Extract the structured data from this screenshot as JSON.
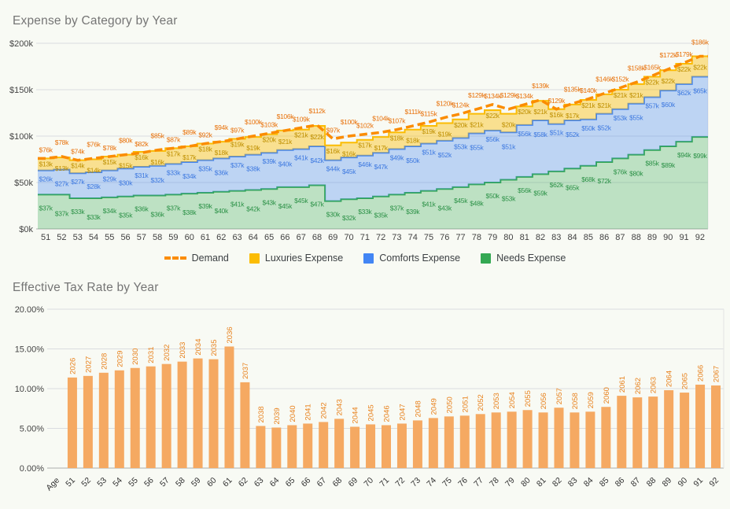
{
  "page_background": "#f8faf4",
  "expense_chart": {
    "title": "Expense by Category by Year",
    "legend": [
      {
        "label": "Demand",
        "marker": "dashed-line",
        "color": "#fb8c00"
      },
      {
        "label": "Luxuries Expense",
        "marker": "square",
        "color": "#fbbc04"
      },
      {
        "label": "Comforts Expense",
        "marker": "square",
        "color": "#4285f4"
      },
      {
        "label": "Needs Expense",
        "marker": "square",
        "color": "#34a853"
      }
    ]
  },
  "tax_chart": {
    "title": "Effective Tax Rate by Year"
  },
  "chart_data": [
    {
      "type": "area",
      "title": "Expense by Category by Year",
      "stacked": true,
      "stepped": true,
      "grid": true,
      "legend_position": "bottom",
      "x": [
        51,
        52,
        53,
        54,
        55,
        56,
        57,
        58,
        59,
        60,
        61,
        62,
        63,
        64,
        65,
        66,
        67,
        68,
        69,
        70,
        71,
        72,
        73,
        74,
        75,
        76,
        77,
        78,
        79,
        80,
        81,
        82,
        83,
        84,
        85,
        86,
        87,
        88,
        89,
        90,
        91,
        92
      ],
      "ylim": [
        0,
        200
      ],
      "value_prefix": "$",
      "value_suffix": "k",
      "y_ticks": [
        {
          "value": 0,
          "label": "$0k"
        },
        {
          "value": 50,
          "label": "$50k"
        },
        {
          "value": 100,
          "label": "$100k"
        },
        {
          "value": 150,
          "label": "$150k"
        },
        {
          "value": 200,
          "label": "$200k"
        }
      ],
      "series": [
        {
          "name": "Needs Expense",
          "color": "#34a853",
          "label_color": "#2d9248",
          "fill_opacity": 0.3,
          "values": [
            37,
            37,
            33,
            33,
            34,
            35,
            36,
            36,
            37,
            38,
            39,
            40,
            41,
            42,
            43,
            45,
            45,
            47,
            30,
            32,
            33,
            35,
            37,
            39,
            41,
            43,
            45,
            48,
            50,
            53,
            56,
            59,
            62,
            65,
            68,
            72,
            76,
            80,
            85,
            89,
            94,
            99
          ]
        },
        {
          "name": "Comforts Expense",
          "color": "#4285f4",
          "label_color": "#3f7ae0",
          "fill_opacity": 0.32,
          "values": [
            26,
            27,
            27,
            28,
            29,
            30,
            31,
            32,
            33,
            34,
            35,
            36,
            37,
            38,
            39,
            40,
            41,
            42,
            44,
            45,
            46,
            47,
            49,
            50,
            51,
            52,
            53,
            55,
            56,
            51,
            56,
            58,
            51,
            52,
            50,
            52,
            53,
            55,
            57,
            60,
            62,
            65
          ]
        },
        {
          "name": "Luxuries Expense",
          "color": "#fbbc04",
          "label_color": "#bf9002",
          "fill_opacity": 0.42,
          "values": [
            13,
            13,
            14,
            14,
            15,
            15,
            16,
            16,
            17,
            17,
            18,
            18,
            19,
            19,
            20,
            21,
            21,
            22,
            16,
            16,
            17,
            17,
            18,
            18,
            19,
            19,
            20,
            21,
            22,
            20,
            20,
            21,
            16,
            17,
            21,
            21,
            21,
            21,
            22,
            22,
            22,
            22
          ]
        }
      ],
      "line": {
        "name": "Demand",
        "color": "#fb8c00",
        "label_color": "#e8710a",
        "dashed": true,
        "values": [
          76,
          78,
          74,
          76,
          78,
          80,
          82,
          85,
          87,
          89,
          92,
          94,
          97,
          100,
          103,
          106,
          109,
          112,
          97,
          100,
          102,
          104,
          107,
          111,
          115,
          120,
          124,
          129,
          134,
          129,
          134,
          139,
          129,
          135,
          140,
          146,
          152,
          158,
          165,
          172,
          179,
          186
        ]
      }
    },
    {
      "type": "bar",
      "title": "Effective Tax Rate by Year",
      "x_axis_prefix_label": "Age",
      "categories": [
        51,
        52,
        53,
        54,
        55,
        56,
        57,
        58,
        59,
        60,
        61,
        62,
        63,
        64,
        65,
        66,
        67,
        68,
        69,
        70,
        71,
        72,
        73,
        74,
        75,
        76,
        77,
        78,
        79,
        80,
        81,
        82,
        83,
        84,
        85,
        86,
        87,
        88,
        89,
        90,
        91,
        92
      ],
      "bar_labels": [
        2026,
        2027,
        2028,
        2029,
        2030,
        2031,
        2032,
        2033,
        2034,
        2035,
        2036,
        2037,
        2038,
        2039,
        2040,
        2041,
        2042,
        2043,
        2044,
        2045,
        2046,
        2047,
        2048,
        2049,
        2050,
        2051,
        2052,
        2053,
        2054,
        2055,
        2056,
        2057,
        2058,
        2059,
        2060,
        2061,
        2062,
        2063,
        2064,
        2065,
        2066,
        2067
      ],
      "values": [
        11.4,
        11.6,
        12.0,
        12.3,
        12.6,
        12.8,
        13.1,
        13.4,
        13.8,
        13.7,
        15.3,
        10.8,
        5.3,
        5.1,
        5.4,
        5.6,
        5.8,
        6.2,
        5.2,
        5.5,
        5.4,
        5.6,
        6.0,
        6.3,
        6.5,
        6.6,
        6.8,
        7.0,
        7.1,
        7.3,
        7.0,
        7.6,
        7.0,
        7.1,
        7.7,
        9.1,
        8.9,
        9.0,
        9.8,
        9.5,
        10.5,
        10.4
      ],
      "ylim": [
        0,
        20
      ],
      "y_ticks": [
        {
          "value": 0,
          "label": "0.00%"
        },
        {
          "value": 5,
          "label": "5.00%"
        },
        {
          "value": 10,
          "label": "10.00%"
        },
        {
          "value": 15,
          "label": "15.00%"
        },
        {
          "value": 20,
          "label": "20.00%"
        }
      ],
      "bar_color": "#f5a962",
      "bar_label_color": "#e8821e"
    }
  ]
}
